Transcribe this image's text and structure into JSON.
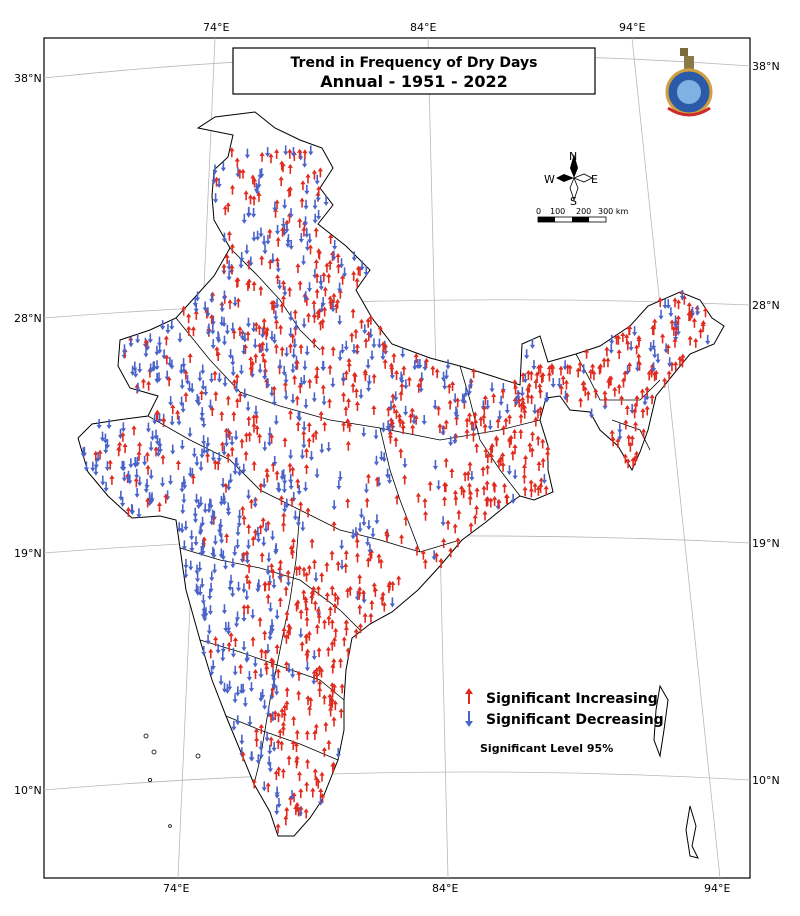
{
  "title": {
    "line1": "Trend in Frequency of Dry Days",
    "line2": "Annual - 1951 - 2022"
  },
  "axes": {
    "top_lon": [
      "74°E",
      "84°E",
      "94°E"
    ],
    "bottom_lon": [
      "74°E",
      "84°E",
      "94°E"
    ],
    "left_lat": [
      "38°N",
      "28°N",
      "19°N",
      "10°N"
    ],
    "right_lat": [
      "38°N",
      "28°N",
      "19°N",
      "10°N"
    ]
  },
  "compass": {
    "n": "N",
    "s": "S",
    "e": "E",
    "w": "W"
  },
  "scale_bar": {
    "ticks": [
      "0",
      "100",
      "200",
      "300 km"
    ]
  },
  "legend": {
    "increasing": "Significant Increasing",
    "decreasing": "Significant Decreasing",
    "level": "Significant Level 95%"
  },
  "colors": {
    "increasing": "#e02b1f",
    "decreasing": "#4a63c8",
    "outline": "#000000",
    "graticule": "#b8b8b8"
  },
  "logo": "imd-emblem-icon"
}
